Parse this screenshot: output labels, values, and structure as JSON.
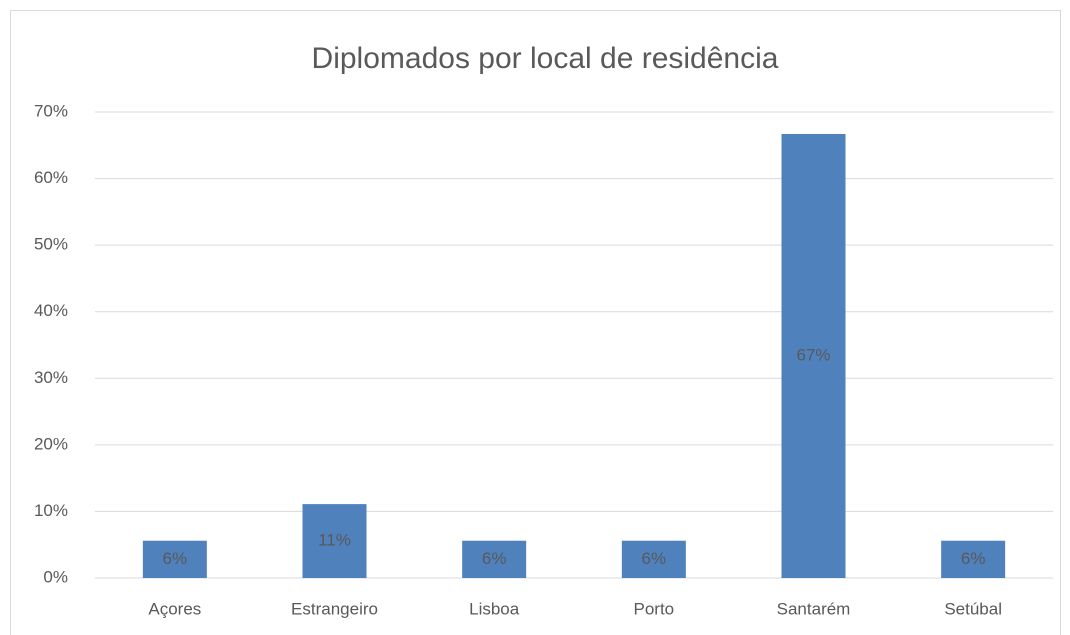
{
  "chart_data": {
    "type": "bar",
    "title": "Diplomados por local de residência",
    "categories": [
      "Açores",
      "Estrangeiro",
      "Lisboa",
      "Porto",
      "Santarém",
      "Setúbal"
    ],
    "values": [
      5.6,
      11.1,
      5.6,
      5.6,
      66.7,
      5.6
    ],
    "value_labels": [
      "6%",
      "11%",
      "6%",
      "6%",
      "67%",
      "6%"
    ],
    "color": "#4f81bd",
    "ylim": [
      0,
      70
    ],
    "yticks": [
      {
        "value": 0,
        "label": "0%"
      },
      {
        "value": 10,
        "label": "10%"
      },
      {
        "value": 20,
        "label": "20%"
      },
      {
        "value": 30,
        "label": "30%"
      },
      {
        "value": 40,
        "label": "40%"
      },
      {
        "value": 50,
        "label": "50%"
      },
      {
        "value": 60,
        "label": "60%"
      },
      {
        "value": 70,
        "label": "70%"
      }
    ],
    "grid": true
  }
}
